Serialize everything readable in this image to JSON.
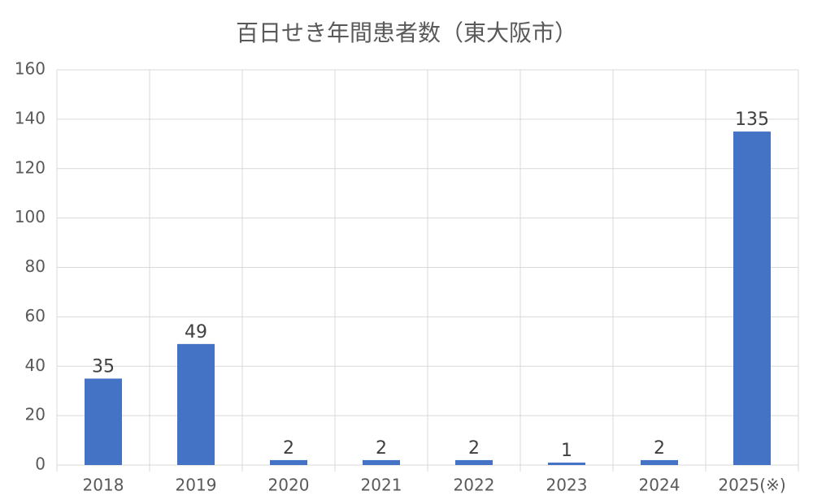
{
  "chart_data": {
    "type": "bar",
    "title": "百日せき年間患者数（東大阪市）",
    "categories": [
      "2018",
      "2019",
      "2020",
      "2021",
      "2022",
      "2023",
      "2024",
      "2025(※)"
    ],
    "values": [
      35,
      49,
      2,
      2,
      2,
      1,
      2,
      135
    ],
    "color": "#4472c4",
    "ylim": [
      0,
      160
    ],
    "yticks": [
      0,
      20,
      40,
      60,
      80,
      100,
      120,
      140,
      160
    ],
    "grid": true
  }
}
